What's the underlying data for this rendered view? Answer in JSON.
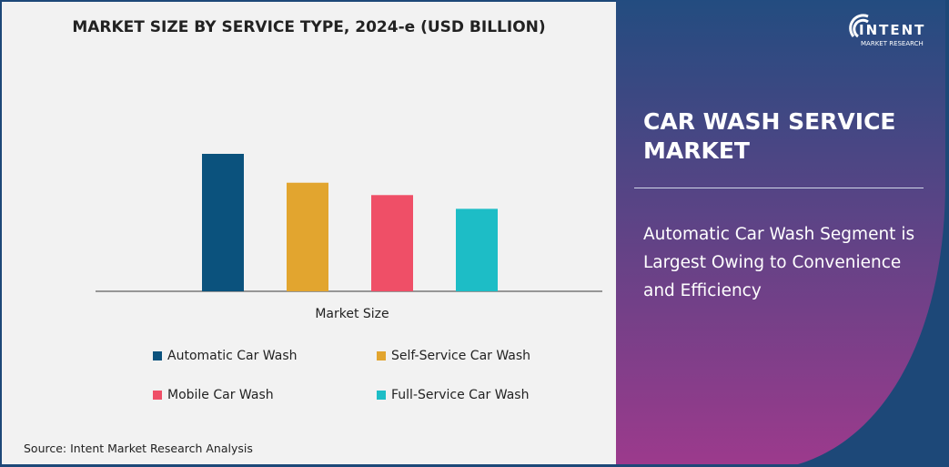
{
  "chart_data": {
    "type": "bar",
    "title": "MARKET SIZE BY SERVICE TYPE, 2024-e (USD BILLION)",
    "xlabel": "Market Size",
    "ylabel": "",
    "categories": [
      "Automatic Car Wash",
      "Self-Service Car Wash",
      "Mobile Car Wash",
      "Full-Service Car Wash"
    ],
    "values": [
      1.0,
      0.79,
      0.7,
      0.6
    ],
    "colors": [
      "#0b527d",
      "#e2a52f",
      "#ef4f67",
      "#1dbdc6"
    ],
    "legend_placement": "bottom",
    "grid": false
  },
  "source": "Source: Intent Market Research Analysis",
  "panel": {
    "title": "CAR WASH SERVICE MARKET",
    "subtitle": "Automatic Car Wash Segment is Largest Owing to Convenience and Efficiency",
    "colors": {
      "top": "#234c80",
      "bottom": "#9c3a8c"
    }
  },
  "logo": {
    "name": "INTENT",
    "tagline": "MARKET RESEARCH",
    "tm": "™"
  }
}
